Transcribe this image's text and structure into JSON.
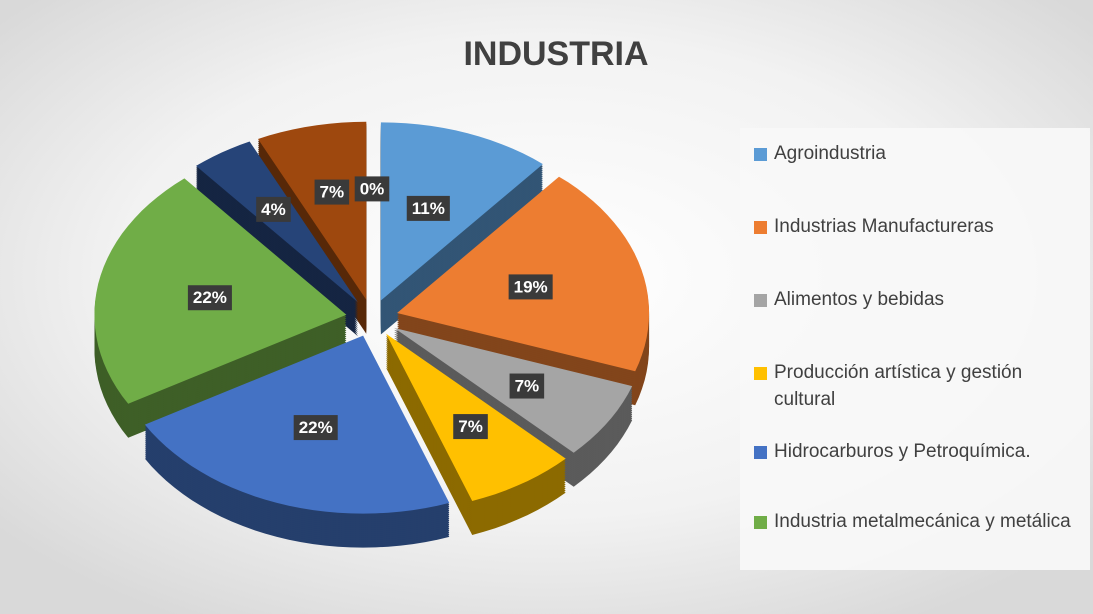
{
  "chart_data": {
    "type": "pie3d",
    "title": "INDUSTRIA",
    "categories": [
      "Agroindustria",
      "Industrias Manufactureras",
      "Alimentos y bebidas",
      "Producción artística y gestión cultural",
      "Hidrocarburos y Petroquímica.",
      "Industria metalmecánica y metálica",
      null,
      null,
      null
    ],
    "values": [
      11,
      19,
      7,
      7,
      22,
      22,
      4,
      7,
      0
    ],
    "value_labels": [
      "11%",
      "19%",
      "7%",
      "7%",
      "22%",
      "22%",
      "4%",
      "7%",
      "0%"
    ],
    "colors": [
      "#5b9bd5",
      "#ed7d31",
      "#a5a5a5",
      "#ffc000",
      "#4472c4",
      "#70ad47",
      "#264478",
      "#9e480e",
      "#636363"
    ]
  }
}
